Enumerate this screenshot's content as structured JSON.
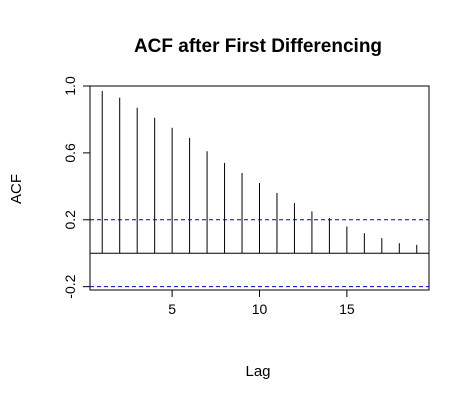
{
  "chart_data": {
    "type": "bar",
    "title": "ACF after First Differencing",
    "xlabel": "Lag",
    "ylabel": "ACF",
    "x": [
      1,
      2,
      3,
      4,
      5,
      6,
      7,
      8,
      9,
      10,
      11,
      12,
      13,
      14,
      15,
      16,
      17,
      18,
      19
    ],
    "values": [
      0.97,
      0.93,
      0.87,
      0.81,
      0.75,
      0.69,
      0.61,
      0.54,
      0.48,
      0.42,
      0.36,
      0.3,
      0.25,
      0.21,
      0.16,
      0.12,
      0.09,
      0.06,
      0.05
    ],
    "xlim": [
      0.3,
      19.7
    ],
    "ylim": [
      -0.22,
      1.0
    ],
    "x_ticks": [
      5,
      10,
      15
    ],
    "x_tick_labels": [
      "5",
      "10",
      "15"
    ],
    "y_ticks": [
      -0.2,
      0.2,
      0.6,
      1.0
    ],
    "y_tick_labels": [
      "-0.2",
      "0.2",
      "0.6",
      "1.0"
    ],
    "zero_line": 0,
    "confidence_bounds": [
      0.2,
      -0.2
    ],
    "confidence_color": "#0000cc",
    "bar_color": "#000000",
    "grid": false,
    "legend": "none"
  }
}
